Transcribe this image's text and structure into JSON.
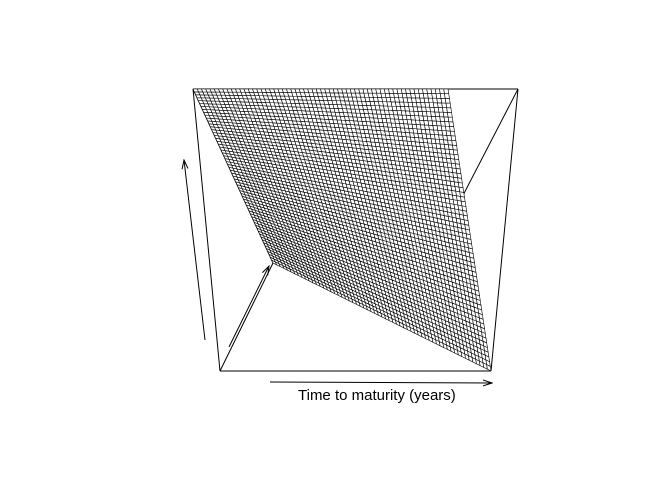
{
  "chart_data": {
    "type": "surface",
    "title": "",
    "xlabel": "Time to maturity (years)",
    "ylabel": "",
    "zlabel": "",
    "grid_resolution": [
      60,
      60
    ],
    "grid": false,
    "colors": {
      "background": "#ffffff",
      "ink": "#000000"
    }
  }
}
